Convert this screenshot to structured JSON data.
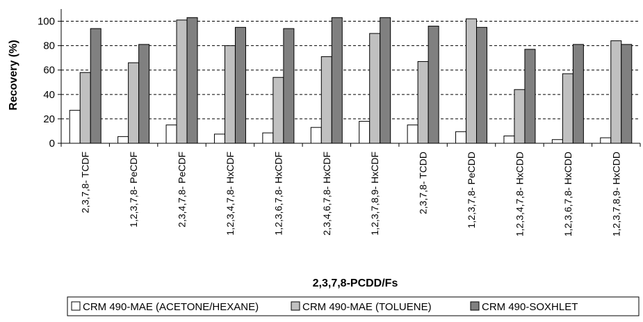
{
  "chart_data": {
    "type": "bar",
    "title": "",
    "xlabel": "2,3,7,8-PCDD/Fs",
    "ylabel": "Recovery (%)",
    "ylim": [
      0,
      110
    ],
    "yticks": [
      "0",
      "20",
      "40",
      "60",
      "80",
      "100"
    ],
    "grid": "horizontal dashed",
    "legend_position": "bottom",
    "categories": [
      "2,3,7,8- TCDF",
      "1,2,3,7,8- PeCDF",
      "2,3,4,7,8- PeCDF",
      "1,2,3,4,7,8- HxCDF",
      "1,2,3,6,7,8- HxCDF",
      "2,3,4,6,7,8- HxCDF",
      "1,2,3,7,8,9- HxCDF",
      "2,3,7,8- TCDD",
      "1,2,3,7,8- PeCDD",
      "1,2,3,4,7,8- HxCDD",
      "1,2,3,6,7,8- HxCDD",
      "1,2,3,7,8,9- HxCDD"
    ],
    "series": [
      {
        "name": "CRM 490-MAE (ACETONE/HEXANE)",
        "color": "#ffffff",
        "values": [
          27,
          5.5,
          15,
          7.5,
          8.5,
          13,
          18,
          15,
          9.5,
          6,
          3,
          4.5
        ]
      },
      {
        "name": "CRM 490-MAE (TOLUENE)",
        "color": "#c0c0c0",
        "values": [
          58,
          66,
          101,
          80,
          54,
          71,
          90,
          67,
          102,
          44,
          57,
          84
        ]
      },
      {
        "name": "CRM 490-SOXHLET",
        "color": "#808080",
        "values": [
          94,
          81,
          103,
          95,
          94,
          103,
          103,
          96,
          95,
          77,
          81,
          81
        ]
      }
    ]
  }
}
